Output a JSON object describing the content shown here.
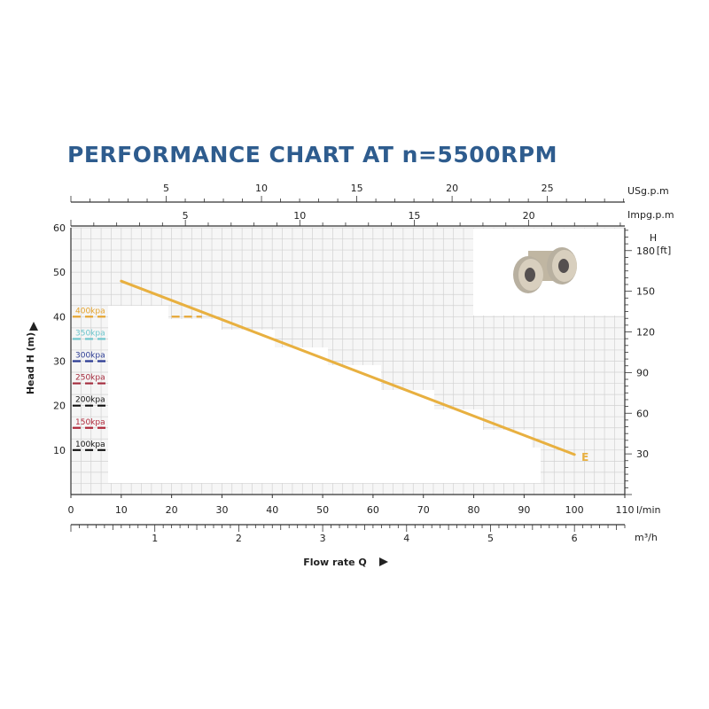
{
  "chart_data": {
    "type": "line",
    "title": "PERFORMANCE CHART AT n=5500RPM",
    "xlabel": "Flow rate Q",
    "ylabel": "Head H (m)",
    "xlim": [
      0,
      110
    ],
    "ylim": [
      0,
      60
    ],
    "grid": true,
    "x_ticks": [
      "0",
      "10",
      "20",
      "30",
      "40",
      "50",
      "60",
      "70",
      "80",
      "90",
      "100",
      "110"
    ],
    "x_unit": "l/min",
    "y_ticks": [
      "10",
      "20",
      "30",
      "40",
      "50",
      "60"
    ],
    "secondary_axes": {
      "m3h": {
        "unit": "m³/h",
        "ticks": [
          "1",
          "2",
          "3",
          "4",
          "5",
          "6"
        ]
      },
      "usgpm": {
        "unit": "USg.p.m",
        "ticks": [
          "5",
          "10",
          "15",
          "20",
          "25"
        ]
      },
      "impgpm": {
        "unit": "Impg.p.m",
        "ticks": [
          "5",
          "10",
          "15",
          "20"
        ]
      },
      "ft": {
        "unit_h": "H",
        "unit_ft": "[ft]",
        "ticks": [
          "30",
          "60",
          "90",
          "120",
          "150",
          "180"
        ]
      }
    },
    "series": [
      {
        "name": "E",
        "color": "#e8b040",
        "points": [
          [
            10,
            48
          ],
          [
            100,
            9
          ]
        ]
      }
    ],
    "pressure_levels": [
      {
        "label": "400kpa",
        "head": 40,
        "color": "#e5a32c"
      },
      {
        "label": "350kpa",
        "head": 35,
        "color": "#6cc5cc"
      },
      {
        "label": "300kpa",
        "head": 30,
        "color": "#2a3a93"
      },
      {
        "label": "250kpa",
        "head": 25,
        "color": "#a42a3c"
      },
      {
        "label": "200kpa",
        "head": 20,
        "color": "#111111"
      },
      {
        "label": "150kpa",
        "head": 15,
        "color": "#b02a3c"
      },
      {
        "label": "100kpa",
        "head": 10,
        "color": "#111111"
      }
    ]
  },
  "pump_image": {
    "icon": "pump-impeller-icon"
  }
}
